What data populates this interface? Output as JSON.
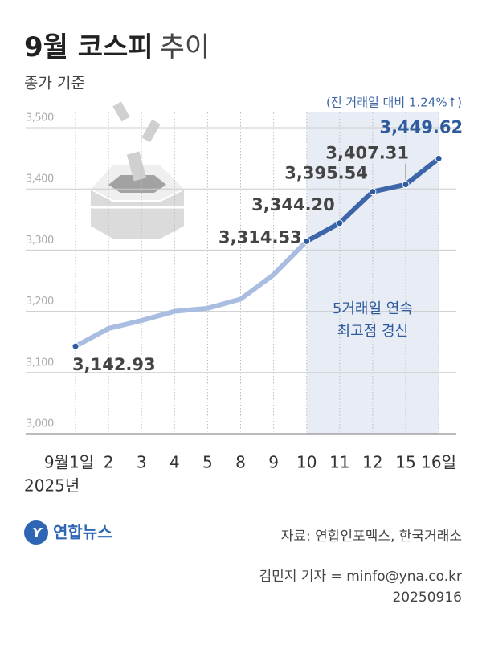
{
  "chart_data": {
    "type": "line",
    "title": {
      "main": "9월 코스피",
      "suffix": "추이"
    },
    "subtitle": "종가 기준",
    "annotation": "(전 거래일 대비 1.24%↑)",
    "categories": [
      "9월1일",
      "2",
      "3",
      "4",
      "5",
      "8",
      "9",
      "10",
      "11",
      "12",
      "15",
      "16일"
    ],
    "x_year_label": "2025년",
    "values": [
      3142.93,
      3172,
      3185,
      3200,
      3205,
      3220,
      3260,
      3314.53,
      3344.2,
      3395.54,
      3407.31,
      3449.62
    ],
    "value_labels": [
      "3,142.93",
      null,
      null,
      null,
      null,
      null,
      null,
      "3,314.53",
      "3,344.20",
      "3,395.54",
      "3,407.31",
      "3,449.62"
    ],
    "color": "#a9bde0",
    "highlight": {
      "start": "10",
      "end": "16일",
      "color": "#3d66aa",
      "fill": "#e8ecf5",
      "label": [
        "5거래일 연속",
        "최고점 경신"
      ]
    },
    "ylim": [
      3000,
      3525
    ],
    "yticks": [
      {
        "value": 3000,
        "label": "3,000"
      },
      {
        "value": 3100,
        "label": "3,100"
      },
      {
        "value": 3200,
        "label": "3,200"
      },
      {
        "value": 3300,
        "label": "3,300"
      },
      {
        "value": 3400,
        "label": "3,400"
      },
      {
        "value": 3500,
        "label": "3,500"
      }
    ],
    "grid": true,
    "source": "자료: 연합인포맥스, 한국거래소",
    "credit": "김민지 기자 = minfo@yna.co.kr",
    "date": "20250916",
    "logo": "연합뉴스"
  }
}
